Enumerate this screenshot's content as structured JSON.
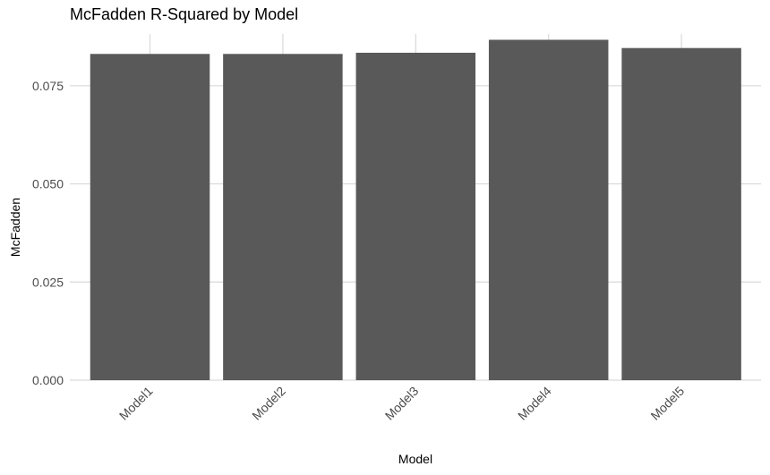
{
  "chart_data": {
    "type": "bar",
    "title": "McFadden R-Squared by Model",
    "xlabel": "Model",
    "ylabel": "McFadden",
    "categories": [
      "Model1",
      "Model2",
      "Model3",
      "Model4",
      "Model5"
    ],
    "values": [
      0.0831,
      0.0831,
      0.0834,
      0.0867,
      0.0846
    ],
    "ylim": [
      0,
      0.09
    ],
    "yticks": [
      0.0,
      0.025,
      0.05,
      0.075
    ],
    "ytick_labels": [
      "0.000",
      "0.025",
      "0.050",
      "0.075"
    ],
    "grid": true,
    "legend": "none",
    "colors": {
      "bar": "#595959",
      "grid": "#d9d9d9",
      "tick_text": "#4d4d4d"
    }
  }
}
